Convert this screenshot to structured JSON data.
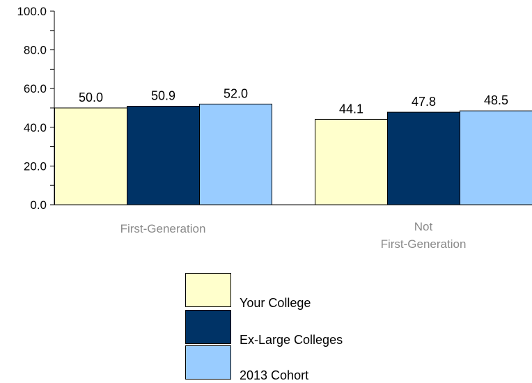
{
  "chart_data": {
    "type": "bar",
    "categories": [
      [
        "First-Generation"
      ],
      [
        "Not",
        "First-Generation"
      ]
    ],
    "series": [
      {
        "name": "Your College",
        "values": [
          50.0,
          44.1
        ],
        "labels": [
          "50.0",
          "44.1"
        ],
        "color": "#ffffcc"
      },
      {
        "name": "Ex-Large Colleges",
        "values": [
          50.9,
          47.8
        ],
        "labels": [
          "50.9",
          "47.8"
        ],
        "color": "#003366"
      },
      {
        "name": "2013 Cohort",
        "values": [
          52.0,
          48.5
        ],
        "labels": [
          "52.0",
          "48.5"
        ],
        "color": "#99ccff"
      }
    ],
    "ylim": [
      0,
      100
    ],
    "ytick_labels": [
      "0.0",
      "20.0",
      "40.0",
      "60.0",
      "80.0",
      "100.0"
    ],
    "minor_ticks": true,
    "grid": false,
    "legend_position": "bottom-center"
  }
}
